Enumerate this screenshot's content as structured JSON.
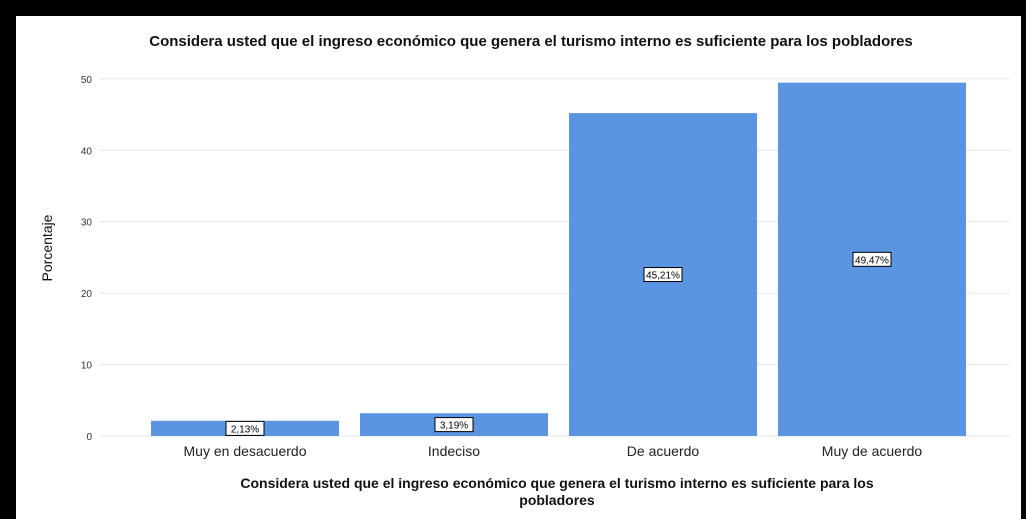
{
  "chart_data": {
    "type": "bar",
    "title": "Considera usted que el ingreso económico que genera el turismo interno es suficiente para los pobladores",
    "xlabel_lines": [
      "Considera usted que el ingreso económico que genera el turismo interno es suficiente para los",
      "pobladores"
    ],
    "ylabel": "Porcentaje",
    "categories": [
      "Muy en desacuerdo",
      "Indeciso",
      "De acuerdo",
      "Muy de acuerdo"
    ],
    "values": [
      2.13,
      3.19,
      45.21,
      49.47
    ],
    "data_labels": [
      "2,13%",
      "3,19%",
      "45,21%",
      "49,47%"
    ],
    "yticks": [
      0,
      10,
      20,
      30,
      40,
      50
    ],
    "ylim": [
      0,
      52.5
    ],
    "grid": true,
    "bar_color": "#5b94e0"
  }
}
